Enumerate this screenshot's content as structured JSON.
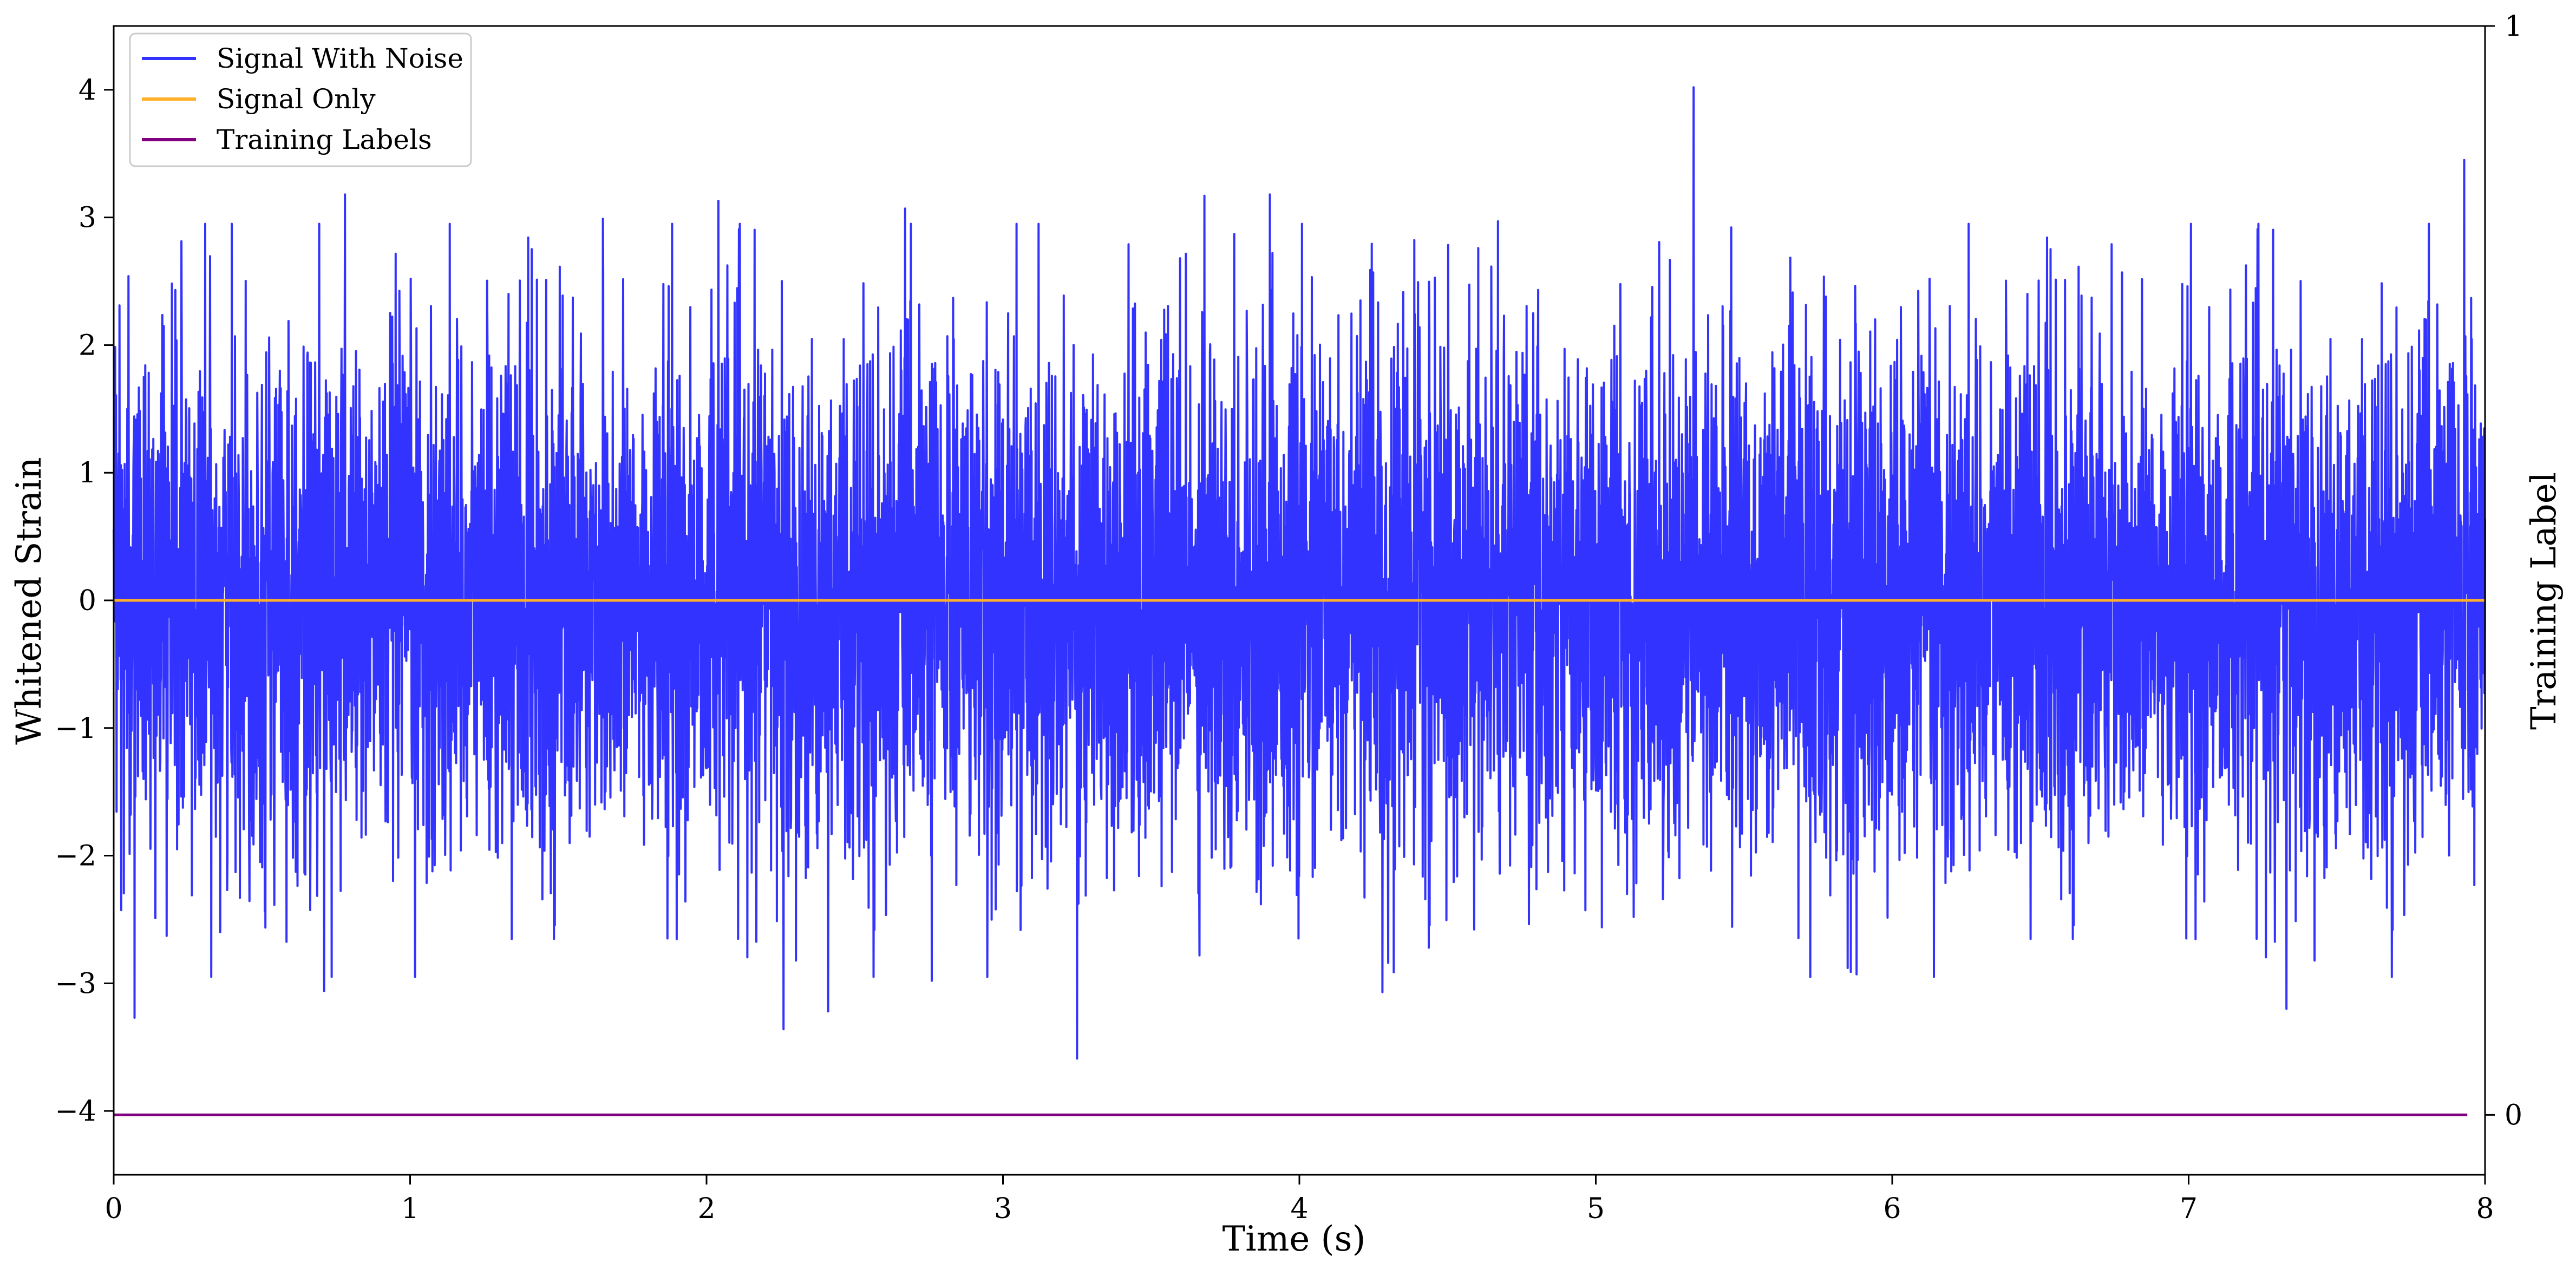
{
  "chart_data": {
    "type": "line",
    "xlabel": "Time (s)",
    "ylabel": "Whitened Strain",
    "y2label": "Training Label",
    "xlim": [
      0,
      8
    ],
    "ylim": [
      -4.5,
      4.5
    ],
    "y2lim": [
      -0.055,
      1.0
    ],
    "xticks": [
      0,
      1,
      2,
      3,
      4,
      5,
      6,
      7,
      8
    ],
    "xtick_labels": [
      "0",
      "1",
      "2",
      "3",
      "4",
      "5",
      "6",
      "7",
      "8"
    ],
    "yticks": [
      -4,
      -3,
      -2,
      -1,
      0,
      1,
      2,
      3,
      4
    ],
    "ytick_labels": [
      "−4",
      "−3",
      "−2",
      "−1",
      "0",
      "1",
      "2",
      "3",
      "4"
    ],
    "y2ticks": [
      0,
      1
    ],
    "y2tick_labels": [
      "0",
      "1"
    ],
    "legend_position": "top-left",
    "grid": false,
    "series": [
      {
        "name": "Signal With Noise",
        "color": "#3333ff",
        "axis": "left",
        "kind": "gaussian-noise",
        "mean": 0,
        "std": 1.0,
        "sample_rate": 1024,
        "peaks": [
          {
            "x": 0.78,
            "y": 3.18
          },
          {
            "x": 1.65,
            "y": 2.99
          },
          {
            "x": 2.04,
            "y": 3.13
          },
          {
            "x": 2.67,
            "y": 3.07
          },
          {
            "x": 3.68,
            "y": 3.17
          },
          {
            "x": 3.9,
            "y": 3.18
          },
          {
            "x": 5.33,
            "y": 4.02
          },
          {
            "x": 7.93,
            "y": 3.45
          },
          {
            "x": 4.67,
            "y": 2.97
          },
          {
            "x": 6.74,
            "y": 2.79
          },
          {
            "x": 0.05,
            "y": 2.54
          },
          {
            "x": 2.26,
            "y": -3.36
          },
          {
            "x": 2.41,
            "y": -3.22
          },
          {
            "x": 3.25,
            "y": -3.59
          },
          {
            "x": 0.07,
            "y": -3.27
          },
          {
            "x": 4.28,
            "y": -3.07
          },
          {
            "x": 0.71,
            "y": -3.06
          },
          {
            "x": 7.33,
            "y": -3.2
          },
          {
            "x": 5.85,
            "y": -2.88
          },
          {
            "x": 5.88,
            "y": -2.93
          },
          {
            "x": 2.76,
            "y": -2.98
          }
        ]
      },
      {
        "name": "Signal Only",
        "color": "#ffb028",
        "axis": "left",
        "x": [
          0,
          8
        ],
        "y": [
          0,
          0
        ]
      },
      {
        "name": "Training Labels",
        "color": "#800080",
        "axis": "right",
        "x": [
          0,
          7.94
        ],
        "y": [
          0,
          0
        ]
      }
    ]
  }
}
